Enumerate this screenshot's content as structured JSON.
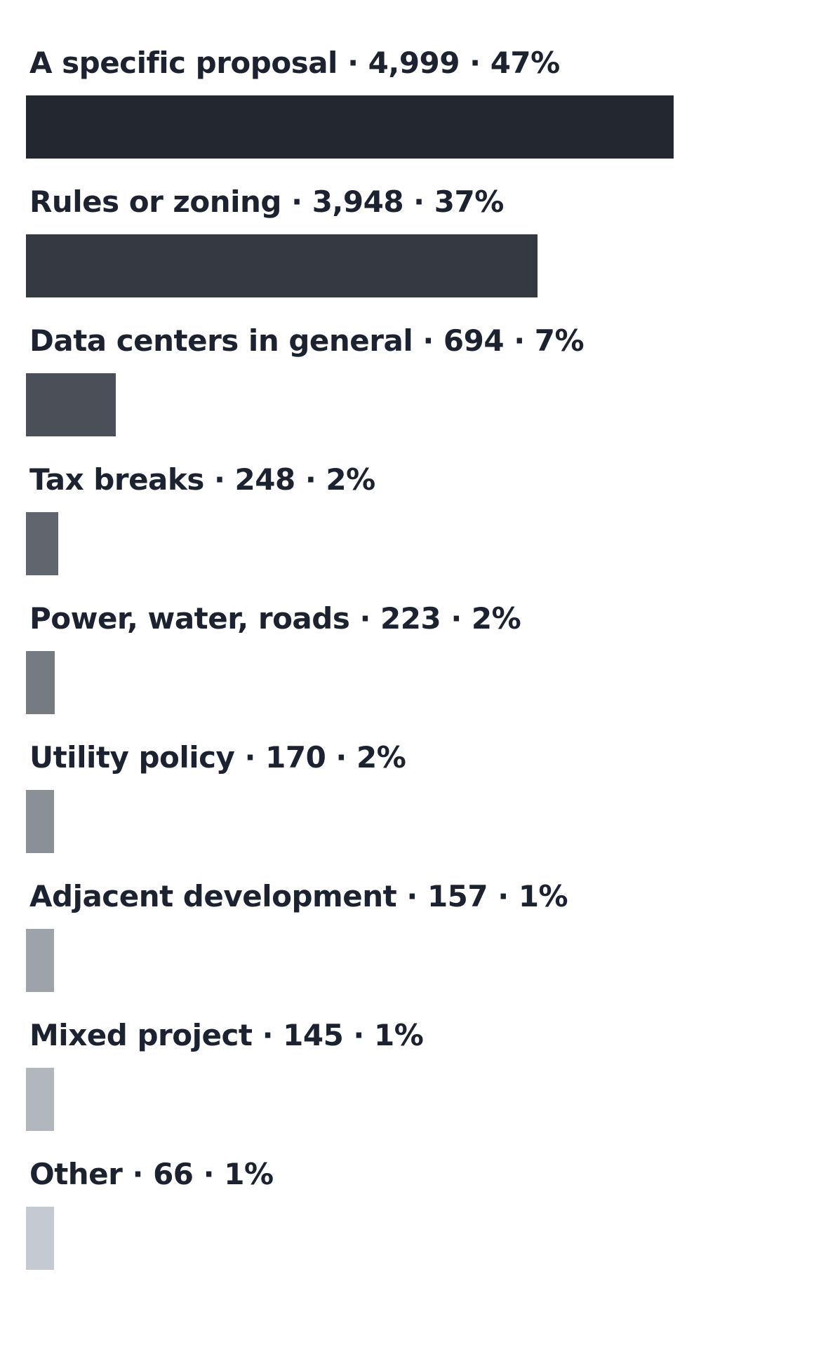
{
  "chart_data": {
    "type": "bar",
    "orientation": "horizontal",
    "title": "",
    "xlabel": "",
    "ylabel": "",
    "legend": "none",
    "grid": false,
    "separator": " · ",
    "rows": [
      {
        "label": "A specific proposal",
        "count": 4999,
        "count_text": "4,999",
        "percent_text": "47%",
        "color": "#232730"
      },
      {
        "label": "Rules or zoning",
        "count": 3948,
        "count_text": "3,948",
        "percent_text": "37%",
        "color": "#353a42"
      },
      {
        "label": "Data centers in general",
        "count": 694,
        "count_text": "694",
        "percent_text": "7%",
        "color": "#4b5058"
      },
      {
        "label": "Tax breaks",
        "count": 248,
        "count_text": "248",
        "percent_text": "2%",
        "color": "#61666e"
      },
      {
        "label": "Power, water, roads",
        "count": 223,
        "count_text": "223",
        "percent_text": "2%",
        "color": "#767b82"
      },
      {
        "label": "Utility policy",
        "count": 170,
        "count_text": "170",
        "percent_text": "2%",
        "color": "#8b9097"
      },
      {
        "label": "Adjacent development",
        "count": 157,
        "count_text": "157",
        "percent_text": "1%",
        "color": "#9ea3aa"
      },
      {
        "label": "Mixed project",
        "count": 145,
        "count_text": "145",
        "percent_text": "1%",
        "color": "#b2b6bd"
      },
      {
        "label": "Other",
        "count": 66,
        "count_text": "66",
        "percent_text": "1%",
        "color": "#c5c9d1"
      }
    ]
  }
}
